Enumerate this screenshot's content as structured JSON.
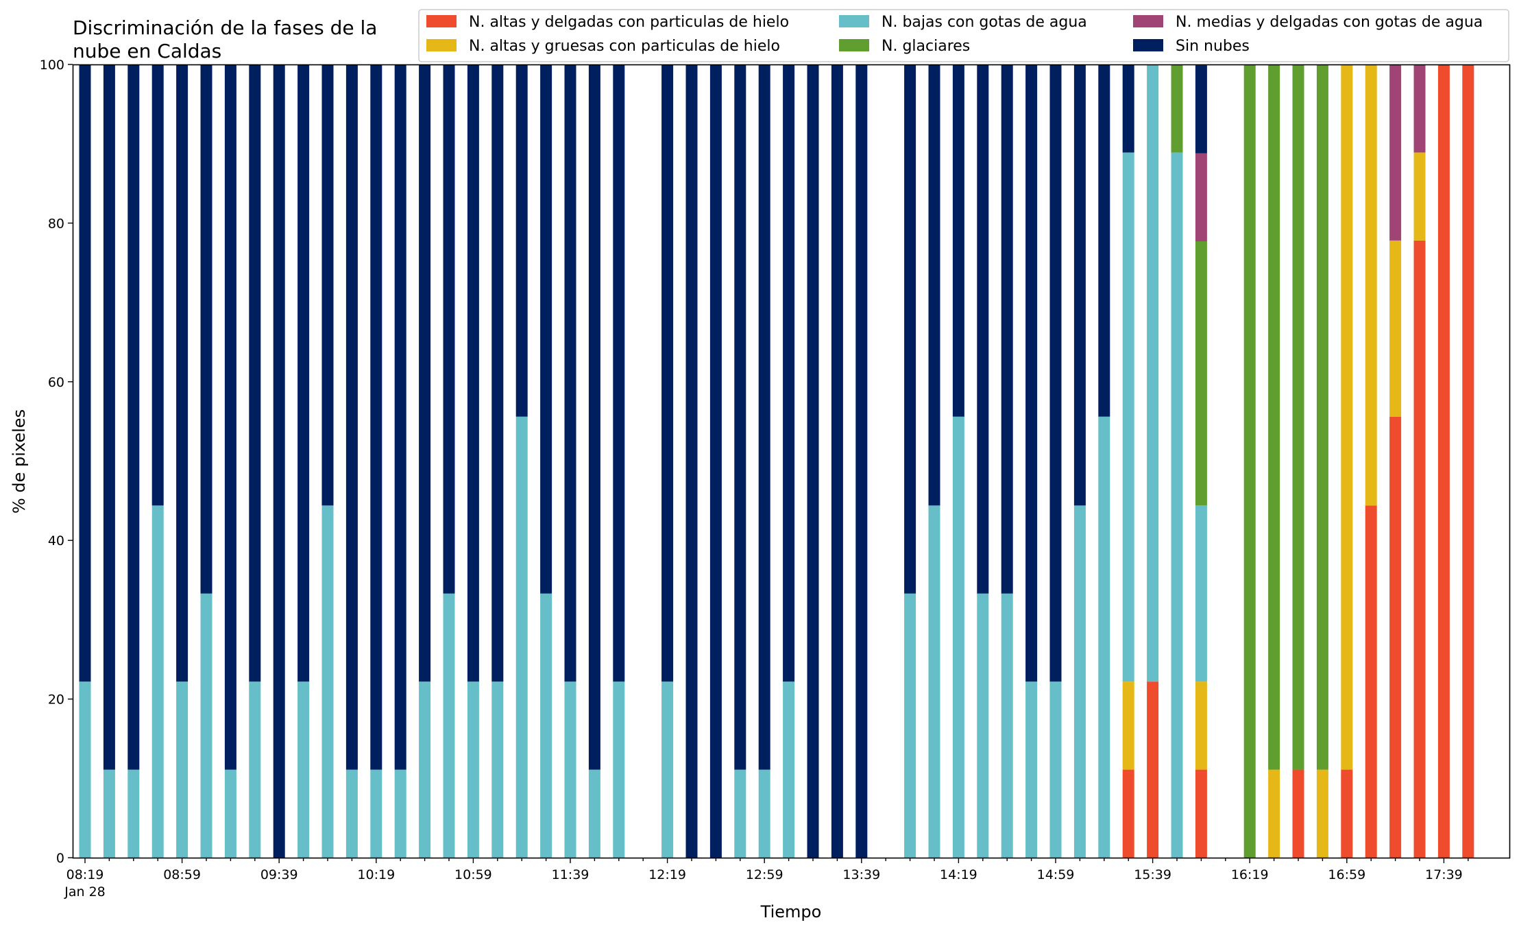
{
  "chart_data": {
    "type": "bar",
    "stacked": true,
    "title_lines": [
      "Discriminación de la fases de la",
      "nube en Caldas"
    ],
    "xlabel": "Tiempo",
    "ylabel": "% de pixeles",
    "ylim": [
      0,
      100
    ],
    "yticks": [
      0,
      20,
      40,
      60,
      80,
      100
    ],
    "x_interval_minutes": 10,
    "x_start": "08:19",
    "x_tick_labels": [
      "08:19",
      "08:59",
      "09:39",
      "10:19",
      "10:59",
      "11:39",
      "12:19",
      "12:59",
      "13:39",
      "14:19",
      "14:59",
      "15:39",
      "16:19",
      "16:59",
      "17:39"
    ],
    "x_date_label": "Jan 28",
    "legend_position": "top-right",
    "legend_columns": 3,
    "categories": [
      "08:19",
      "08:29",
      "08:39",
      "08:49",
      "08:59",
      "09:09",
      "09:19",
      "09:29",
      "09:39",
      "09:49",
      "09:59",
      "10:09",
      "10:19",
      "10:29",
      "10:39",
      "10:49",
      "10:59",
      "11:09",
      "11:19",
      "11:29",
      "11:39",
      "11:49",
      "11:59",
      "12:09",
      "12:19",
      "12:29",
      "12:39",
      "12:49",
      "12:59",
      "13:09",
      "13:19",
      "13:29",
      "13:39",
      "13:49",
      "13:59",
      "14:09",
      "14:19",
      "14:29",
      "14:39",
      "14:49",
      "14:59",
      "15:09",
      "15:19",
      "15:29",
      "15:39",
      "15:49",
      "15:59",
      "16:09",
      "16:19",
      "16:29",
      "16:39",
      "16:49",
      "16:59",
      "17:09",
      "17:19",
      "17:29",
      "17:39",
      "17:49"
    ],
    "series": [
      {
        "name": "N. altas y delgadas con particulas de hielo",
        "color": "#ee4c2c",
        "values": [
          0,
          0,
          0,
          0,
          0,
          0,
          0,
          0,
          0,
          0,
          0,
          0,
          0,
          0,
          0,
          0,
          0,
          0,
          0,
          0,
          0,
          0,
          0,
          null,
          0,
          0,
          0,
          0,
          0,
          0,
          0,
          0,
          0,
          null,
          0,
          0,
          0,
          0,
          0,
          0,
          0,
          0,
          0,
          11.1,
          22.2,
          0,
          11.1,
          null,
          0,
          0,
          11.1,
          0,
          11.1,
          44.4,
          55.6,
          77.8,
          100,
          100
        ]
      },
      {
        "name": "N. altas y gruesas con particulas de hielo",
        "color": "#e5b717",
        "values": [
          0,
          0,
          0,
          0,
          0,
          0,
          0,
          0,
          0,
          0,
          0,
          0,
          0,
          0,
          0,
          0,
          0,
          0,
          0,
          0,
          0,
          0,
          0,
          null,
          0,
          0,
          0,
          0,
          0,
          0,
          0,
          0,
          0,
          null,
          0,
          0,
          0,
          0,
          0,
          0,
          0,
          0,
          0,
          11.1,
          0,
          0,
          11.1,
          null,
          0,
          11.1,
          0,
          11.1,
          88.9,
          55.6,
          22.2,
          11.1,
          0,
          0
        ]
      },
      {
        "name": "N. bajas con gotas de agua",
        "color": "#65bec8",
        "values": [
          22.2,
          11.1,
          11.1,
          44.4,
          22.2,
          33.3,
          11.1,
          22.2,
          0,
          22.2,
          44.4,
          11.1,
          11.1,
          11.1,
          22.2,
          33.3,
          22.2,
          22.2,
          55.6,
          33.3,
          22.2,
          11.1,
          22.2,
          null,
          22.2,
          0,
          0,
          11.1,
          11.1,
          22.2,
          0,
          0,
          0,
          null,
          33.3,
          44.4,
          55.6,
          33.3,
          33.3,
          22.2,
          22.2,
          44.4,
          55.6,
          66.7,
          77.8,
          88.9,
          22.2,
          null,
          0,
          0,
          0,
          0,
          0,
          0,
          0,
          0,
          0,
          0
        ]
      },
      {
        "name": "N. glaciares",
        "color": "#5f9e2f",
        "values": [
          0,
          0,
          0,
          0,
          0,
          0,
          0,
          0,
          0,
          0,
          0,
          0,
          0,
          0,
          0,
          0,
          0,
          0,
          0,
          0,
          0,
          0,
          0,
          null,
          0,
          0,
          0,
          0,
          0,
          0,
          0,
          0,
          0,
          null,
          0,
          0,
          0,
          0,
          0,
          0,
          0,
          0,
          0,
          0,
          0,
          11.1,
          33.3,
          null,
          100,
          88.9,
          88.9,
          88.9,
          0,
          0,
          0,
          0,
          0,
          0
        ]
      },
      {
        "name": "N. medias y delgadas con gotas de agua",
        "color": "#a04476",
        "values": [
          0,
          0,
          0,
          0,
          0,
          0,
          0,
          0,
          0,
          0,
          0,
          0,
          0,
          0,
          0,
          0,
          0,
          0,
          0,
          0,
          0,
          0,
          0,
          null,
          0,
          0,
          0,
          0,
          0,
          0,
          0,
          0,
          0,
          null,
          0,
          0,
          0,
          0,
          0,
          0,
          0,
          0,
          0,
          0,
          0,
          0,
          11.1,
          null,
          0,
          0,
          0,
          0,
          0,
          0,
          22.2,
          11.1,
          0,
          0
        ]
      },
      {
        "name": "Sin nubes",
        "color": "#001f5e",
        "values": [
          77.8,
          88.9,
          88.9,
          55.6,
          77.8,
          66.7,
          88.9,
          77.8,
          100,
          77.8,
          55.6,
          88.9,
          88.9,
          88.9,
          77.8,
          66.7,
          77.8,
          77.8,
          44.4,
          66.7,
          77.8,
          88.9,
          77.8,
          null,
          77.8,
          100,
          100,
          88.9,
          88.9,
          77.8,
          100,
          100,
          100,
          null,
          66.7,
          55.6,
          44.4,
          66.7,
          66.7,
          77.8,
          77.8,
          55.6,
          44.4,
          11.1,
          0,
          0,
          11.1,
          null,
          0,
          0,
          0,
          0,
          0,
          0,
          0,
          0,
          0,
          0
        ]
      }
    ]
  }
}
